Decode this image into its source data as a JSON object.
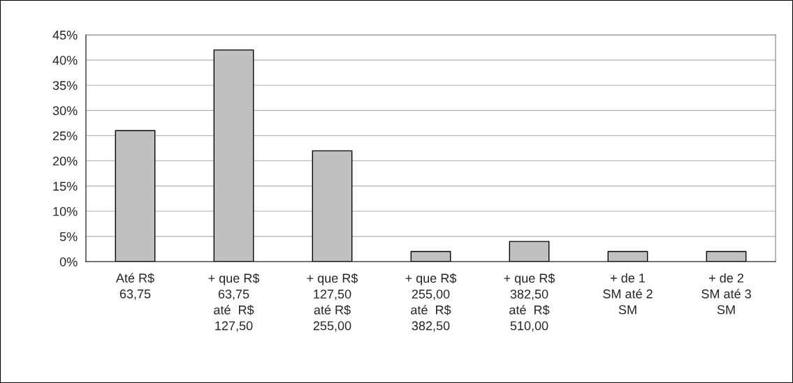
{
  "chart_data": {
    "type": "bar",
    "categories": [
      "Até R$\n63,75",
      "+ que R$\n63,75\naté  R$\n127,50",
      "+ que R$\n127,50\naté R$\n255,00",
      "+ que R$\n255,00\naté  R$\n382,50",
      "+ que R$\n382,50\naté  R$\n510,00",
      "+ de 1\nSM até 2\nSM",
      "+ de 2\nSM até 3\nSM"
    ],
    "values": [
      26,
      42,
      22,
      2,
      4,
      2,
      2
    ],
    "color": "#c0c0c0",
    "ylim": [
      0,
      45
    ],
    "yticks": [
      {
        "value": 0,
        "label": "0%"
      },
      {
        "value": 5,
        "label": "5%"
      },
      {
        "value": 10,
        "label": "10%"
      },
      {
        "value": 15,
        "label": "15%"
      },
      {
        "value": 20,
        "label": "20%"
      },
      {
        "value": 25,
        "label": "25%"
      },
      {
        "value": 30,
        "label": "30%"
      },
      {
        "value": 35,
        "label": "35%"
      },
      {
        "value": 40,
        "label": "40%"
      },
      {
        "value": 45,
        "label": "45%"
      }
    ],
    "grid": "y"
  }
}
